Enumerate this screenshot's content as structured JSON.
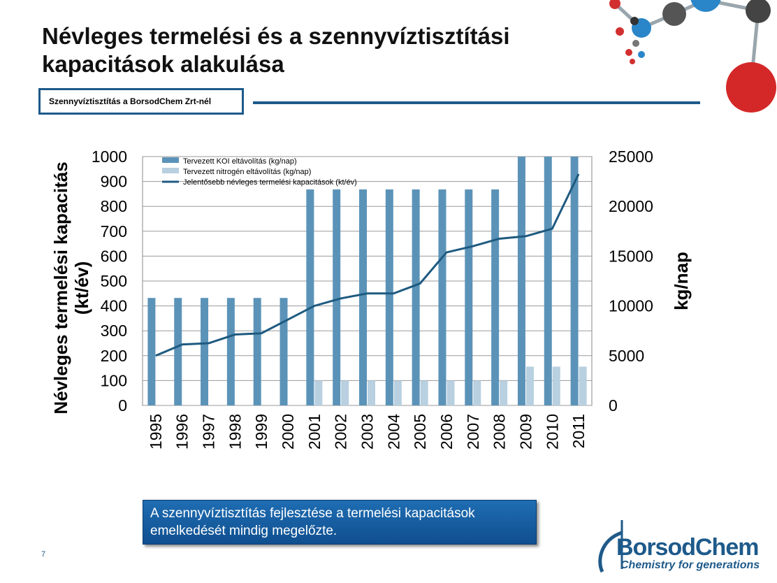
{
  "page": {
    "title_line1": "Névleges termelési és a szennyvíztisztítási",
    "title_line2": "kapacitások alakulása",
    "subtitle": "Szennyvíztisztítás a BorsodChem Zrt-nél",
    "callout_line1": "A szennyvíztisztítás fejlesztése a termelési kapacitások",
    "callout_line2": "emelkedését mindig megelőzte.",
    "page_number": "7",
    "logo_name": "BorsodChem",
    "logo_tagline": "Chemistry for generations"
  },
  "chart_data": {
    "type": "bar",
    "categories": [
      "1995",
      "1996",
      "1997",
      "1998",
      "1999",
      "2000",
      "2001",
      "2002",
      "2003",
      "2004",
      "2005",
      "2006",
      "2007",
      "2008",
      "2009",
      "2010",
      "2011"
    ],
    "ylabel_left": "Névleges termelési kapacitás (kt/év)",
    "ylabel_right": "kg/nap",
    "ylim_left": [
      0,
      1000
    ],
    "ylim_right": [
      0,
      25000
    ],
    "yticks_left": [
      "0",
      "100",
      "200",
      "300",
      "400",
      "500",
      "600",
      "700",
      "800",
      "900",
      "1000"
    ],
    "yticks_right": [
      "0",
      "5000",
      "10000",
      "15000",
      "20000",
      "25000"
    ],
    "grid": true,
    "legend_position": "top-left",
    "series": [
      {
        "name": "Tervezett KOI eltávolítás (kg/nap)",
        "kind": "bar",
        "axis": "right",
        "color": "#5b93b8",
        "values": [
          10800,
          10800,
          10800,
          10800,
          10800,
          10800,
          21700,
          21700,
          21700,
          21700,
          21700,
          21700,
          21700,
          21700,
          25000,
          25000,
          25000
        ]
      },
      {
        "name": "Tervezett nitrogén eltávolítás (kg/nap)",
        "kind": "bar",
        "axis": "right",
        "color": "#b8d0e0",
        "values": [
          0,
          0,
          0,
          0,
          0,
          0,
          2500,
          2500,
          2500,
          2500,
          2500,
          2500,
          2500,
          2500,
          3900,
          3900,
          3900
        ]
      },
      {
        "name": "Jelentősebb névleges termelési kapacitások (kt/év)",
        "kind": "line",
        "axis": "left",
        "color": "#1e5a80",
        "values": [
          200,
          245,
          250,
          285,
          290,
          345,
          400,
          430,
          450,
          450,
          490,
          615,
          640,
          670,
          680,
          710,
          930
        ]
      }
    ]
  }
}
